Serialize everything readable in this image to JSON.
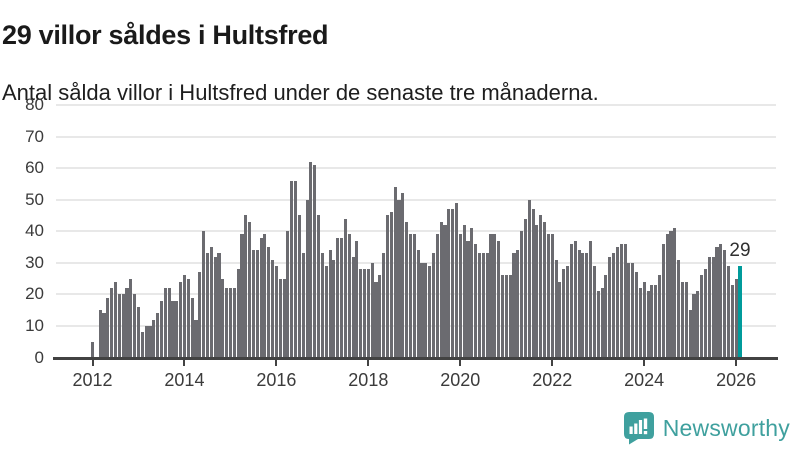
{
  "header": {
    "title": "29 villor såldes i Hultsfred",
    "subtitle": "Antal sålda villor i Hultsfred under de senaste tre månaderna."
  },
  "chart_data": {
    "type": "bar",
    "title": "29 villor såldes i Hultsfred",
    "subtitle": "Antal sålda villor i Hultsfred under de senaste tre månaderna.",
    "xlabel": "",
    "ylabel": "",
    "x_start_month": "2012-01",
    "x_end_month": "2026-02",
    "ylim": [
      0,
      80
    ],
    "grid": true,
    "yticks": [
      0,
      10,
      20,
      30,
      40,
      50,
      60,
      70,
      80
    ],
    "xticks": [
      "2012",
      "2014",
      "2016",
      "2018",
      "2020",
      "2022",
      "2024",
      "2026"
    ],
    "values": [
      5,
      0,
      15,
      14,
      19,
      22,
      24,
      20,
      20,
      22,
      25,
      20,
      16,
      8,
      10,
      10,
      12,
      14,
      18,
      22,
      22,
      18,
      18,
      24,
      26,
      25,
      19,
      12,
      27,
      40,
      33,
      35,
      32,
      33,
      25,
      22,
      22,
      22,
      28,
      39,
      45,
      43,
      34,
      34,
      38,
      39,
      35,
      31,
      29,
      25,
      25,
      40,
      56,
      56,
      45,
      33,
      50,
      62,
      61,
      45,
      33,
      29,
      34,
      31,
      38,
      38,
      44,
      39,
      32,
      37,
      28,
      28,
      28,
      30,
      24,
      26,
      33,
      45,
      46,
      54,
      50,
      52,
      43,
      39,
      39,
      34,
      30,
      30,
      29,
      33,
      39,
      43,
      42,
      47,
      47,
      49,
      39,
      42,
      37,
      41,
      36,
      33,
      33,
      33,
      39,
      39,
      37,
      26,
      26,
      26,
      33,
      34,
      40,
      44,
      50,
      47,
      42,
      45,
      43,
      39,
      39,
      31,
      24,
      28,
      29,
      36,
      37,
      34,
      33,
      33,
      37,
      29,
      21,
      22,
      26,
      32,
      33,
      35,
      36,
      36,
      30,
      30,
      27,
      22,
      24,
      21,
      23,
      23,
      26,
      36,
      39,
      40,
      41,
      31,
      24,
      24,
      15,
      20,
      21,
      26,
      28,
      32,
      32,
      35,
      36,
      34,
      29,
      23,
      25,
      29
    ],
    "highlight_index": 169,
    "highlight_value": 29,
    "annotation_label": "29",
    "bar_color": "#6b6b70",
    "highlight_color": "#009b9b",
    "grid_color": "#e8e8e8",
    "axis_color": "#424242",
    "label_color": "#3b3b3b"
  },
  "footer": {
    "brand": "Newsworthy",
    "brand_color": "#3fa09e",
    "logo_icon": "bar-chart-speech-bubble"
  }
}
